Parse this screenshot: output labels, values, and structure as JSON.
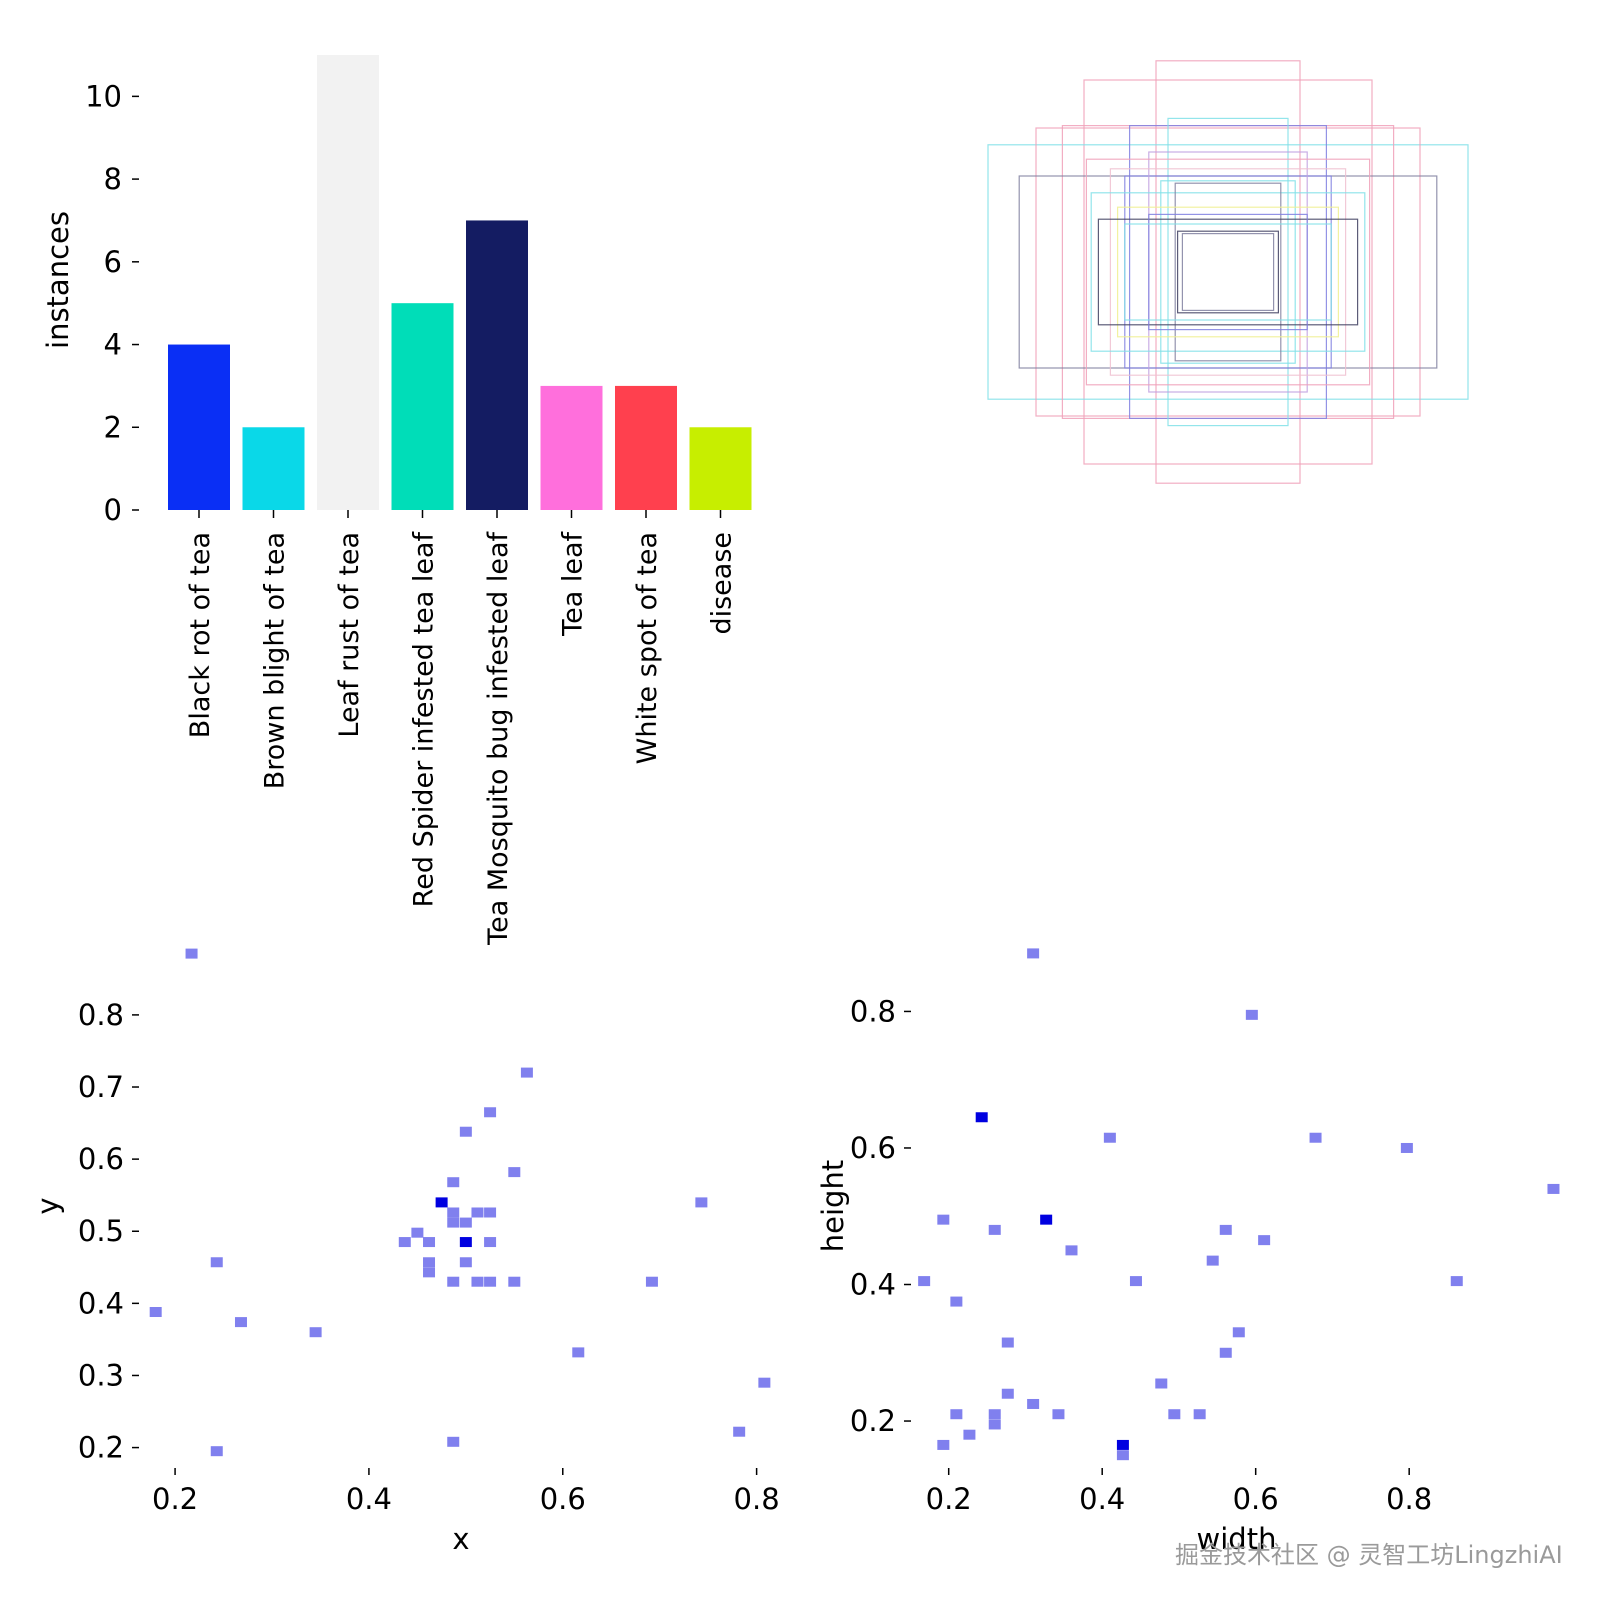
{
  "watermark": "掘金技术社区 @ 灵智工坊LingzhiAI",
  "chart_data": [
    {
      "type": "bar",
      "panel": "top-left",
      "title": "",
      "xlabel": "",
      "ylabel": "instances",
      "ylim": [
        0,
        11
      ],
      "yticks": [
        0,
        2,
        4,
        6,
        8,
        10
      ],
      "categories": [
        "Black rot of tea",
        "Brown blight of tea",
        "Leaf rust of tea",
        "Red Spider infested tea leaf",
        "Tea Mosquito bug infested leaf",
        "Tea leaf",
        "White spot of tea",
        "disease"
      ],
      "values": [
        4,
        2,
        11,
        5,
        7,
        3,
        3,
        2
      ],
      "colors": [
        "#0a2ff5",
        "#0ad8e8",
        "#f2f2f2",
        "#00ddb8",
        "#141c62",
        "#ff6fdc",
        "#ff404e",
        "#c7ee00"
      ]
    },
    {
      "type": "box-overlay",
      "panel": "top-right",
      "title": "",
      "description_free": true,
      "boxes": [
        {
          "w": 0.3,
          "h": 0.88,
          "color": "#f0a0b8"
        },
        {
          "w": 0.6,
          "h": 0.8,
          "color": "#f0a0b8"
        },
        {
          "w": 1.0,
          "h": 0.53,
          "color": "#80e0e8"
        },
        {
          "w": 0.8,
          "h": 0.6,
          "color": "#f0a0b8"
        },
        {
          "w": 0.69,
          "h": 0.61,
          "color": "#f0a0b8"
        },
        {
          "w": 0.41,
          "h": 0.61,
          "color": "#8080e0"
        },
        {
          "w": 0.25,
          "h": 0.64,
          "color": "#80e0e8"
        },
        {
          "w": 0.87,
          "h": 0.4,
          "color": "#8080a0"
        },
        {
          "w": 0.43,
          "h": 0.4,
          "color": "#8080e0"
        },
        {
          "w": 0.33,
          "h": 0.5,
          "color": "#c0a0e0"
        },
        {
          "w": 0.59,
          "h": 0.47,
          "color": "#f0a0b8"
        },
        {
          "w": 0.49,
          "h": 0.43,
          "color": "#f0c0d0"
        },
        {
          "w": 0.57,
          "h": 0.33,
          "color": "#80e0e8"
        },
        {
          "w": 0.28,
          "h": 0.38,
          "color": "#80e0e8"
        },
        {
          "w": 0.22,
          "h": 0.37,
          "color": "#8080a0"
        },
        {
          "w": 0.46,
          "h": 0.27,
          "color": "#f0f090"
        },
        {
          "w": 0.54,
          "h": 0.22,
          "color": "#404060"
        },
        {
          "w": 0.33,
          "h": 0.24,
          "color": "#8080e0"
        },
        {
          "w": 0.43,
          "h": 0.2,
          "color": "#80e0e8"
        },
        {
          "w": 0.21,
          "h": 0.17,
          "color": "#404060"
        },
        {
          "w": 0.19,
          "h": 0.16,
          "color": "#8080a0"
        }
      ]
    },
    {
      "type": "heatmap",
      "panel": "bottom-left",
      "title": "",
      "xlabel": "x",
      "ylabel": "y",
      "xlim": [
        0.17,
        0.82
      ],
      "ylim": [
        0.18,
        0.89
      ],
      "xticks": [
        0.2,
        0.4,
        0.6,
        0.8
      ],
      "yticks": [
        0.2,
        0.3,
        0.4,
        0.5,
        0.6,
        0.7,
        0.8
      ],
      "cells": [
        {
          "x": 0.217,
          "y": 0.885,
          "count": 1
        },
        {
          "x": 0.563,
          "y": 0.72,
          "count": 1
        },
        {
          "x": 0.525,
          "y": 0.665,
          "count": 1
        },
        {
          "x": 0.5,
          "y": 0.638,
          "count": 1
        },
        {
          "x": 0.55,
          "y": 0.582,
          "count": 1
        },
        {
          "x": 0.487,
          "y": 0.568,
          "count": 1
        },
        {
          "x": 0.475,
          "y": 0.54,
          "count": 2
        },
        {
          "x": 0.743,
          "y": 0.54,
          "count": 1
        },
        {
          "x": 0.487,
          "y": 0.526,
          "count": 1
        },
        {
          "x": 0.512,
          "y": 0.526,
          "count": 1
        },
        {
          "x": 0.525,
          "y": 0.526,
          "count": 1
        },
        {
          "x": 0.487,
          "y": 0.512,
          "count": 1
        },
        {
          "x": 0.5,
          "y": 0.512,
          "count": 1
        },
        {
          "x": 0.45,
          "y": 0.498,
          "count": 1
        },
        {
          "x": 0.437,
          "y": 0.485,
          "count": 1
        },
        {
          "x": 0.462,
          "y": 0.485,
          "count": 1
        },
        {
          "x": 0.5,
          "y": 0.485,
          "count": 2
        },
        {
          "x": 0.525,
          "y": 0.485,
          "count": 1
        },
        {
          "x": 0.243,
          "y": 0.457,
          "count": 1
        },
        {
          "x": 0.5,
          "y": 0.457,
          "count": 1
        },
        {
          "x": 0.462,
          "y": 0.457,
          "count": 1
        },
        {
          "x": 0.462,
          "y": 0.443,
          "count": 1
        },
        {
          "x": 0.487,
          "y": 0.43,
          "count": 1
        },
        {
          "x": 0.512,
          "y": 0.43,
          "count": 1
        },
        {
          "x": 0.525,
          "y": 0.43,
          "count": 1
        },
        {
          "x": 0.55,
          "y": 0.43,
          "count": 1
        },
        {
          "x": 0.692,
          "y": 0.43,
          "count": 1
        },
        {
          "x": 0.18,
          "y": 0.388,
          "count": 1
        },
        {
          "x": 0.268,
          "y": 0.374,
          "count": 1
        },
        {
          "x": 0.345,
          "y": 0.36,
          "count": 1
        },
        {
          "x": 0.616,
          "y": 0.332,
          "count": 1
        },
        {
          "x": 0.808,
          "y": 0.29,
          "count": 1
        },
        {
          "x": 0.782,
          "y": 0.222,
          "count": 1
        },
        {
          "x": 0.487,
          "y": 0.208,
          "count": 1
        },
        {
          "x": 0.243,
          "y": 0.195,
          "count": 1
        }
      ]
    },
    {
      "type": "heatmap",
      "panel": "bottom-right",
      "title": "",
      "xlabel": "width",
      "ylabel": "height",
      "xlim": [
        0.16,
        0.99
      ],
      "ylim": [
        0.14,
        0.89
      ],
      "xticks": [
        0.2,
        0.4,
        0.6,
        0.8
      ],
      "yticks": [
        0.2,
        0.4,
        0.6,
        0.8
      ],
      "cells": [
        {
          "x": 0.31,
          "y": 0.885,
          "count": 1
        },
        {
          "x": 0.595,
          "y": 0.795,
          "count": 1
        },
        {
          "x": 0.243,
          "y": 0.645,
          "count": 2
        },
        {
          "x": 0.41,
          "y": 0.615,
          "count": 1
        },
        {
          "x": 0.678,
          "y": 0.615,
          "count": 1
        },
        {
          "x": 0.797,
          "y": 0.6,
          "count": 1
        },
        {
          "x": 0.988,
          "y": 0.54,
          "count": 1
        },
        {
          "x": 0.193,
          "y": 0.495,
          "count": 1
        },
        {
          "x": 0.327,
          "y": 0.495,
          "count": 2
        },
        {
          "x": 0.26,
          "y": 0.48,
          "count": 1
        },
        {
          "x": 0.561,
          "y": 0.48,
          "count": 1
        },
        {
          "x": 0.611,
          "y": 0.465,
          "count": 1
        },
        {
          "x": 0.36,
          "y": 0.45,
          "count": 1
        },
        {
          "x": 0.544,
          "y": 0.435,
          "count": 1
        },
        {
          "x": 0.168,
          "y": 0.405,
          "count": 1
        },
        {
          "x": 0.444,
          "y": 0.405,
          "count": 1
        },
        {
          "x": 0.862,
          "y": 0.405,
          "count": 1
        },
        {
          "x": 0.21,
          "y": 0.375,
          "count": 1
        },
        {
          "x": 0.578,
          "y": 0.33,
          "count": 1
        },
        {
          "x": 0.277,
          "y": 0.315,
          "count": 1
        },
        {
          "x": 0.561,
          "y": 0.3,
          "count": 1
        },
        {
          "x": 0.477,
          "y": 0.255,
          "count": 1
        },
        {
          "x": 0.277,
          "y": 0.24,
          "count": 1
        },
        {
          "x": 0.31,
          "y": 0.225,
          "count": 1
        },
        {
          "x": 0.21,
          "y": 0.21,
          "count": 1
        },
        {
          "x": 0.26,
          "y": 0.21,
          "count": 1
        },
        {
          "x": 0.343,
          "y": 0.21,
          "count": 1
        },
        {
          "x": 0.494,
          "y": 0.21,
          "count": 1
        },
        {
          "x": 0.527,
          "y": 0.21,
          "count": 1
        },
        {
          "x": 0.26,
          "y": 0.195,
          "count": 1
        },
        {
          "x": 0.227,
          "y": 0.18,
          "count": 1
        },
        {
          "x": 0.193,
          "y": 0.165,
          "count": 1
        },
        {
          "x": 0.427,
          "y": 0.165,
          "count": 2
        },
        {
          "x": 0.427,
          "y": 0.15,
          "count": 1
        }
      ]
    }
  ]
}
